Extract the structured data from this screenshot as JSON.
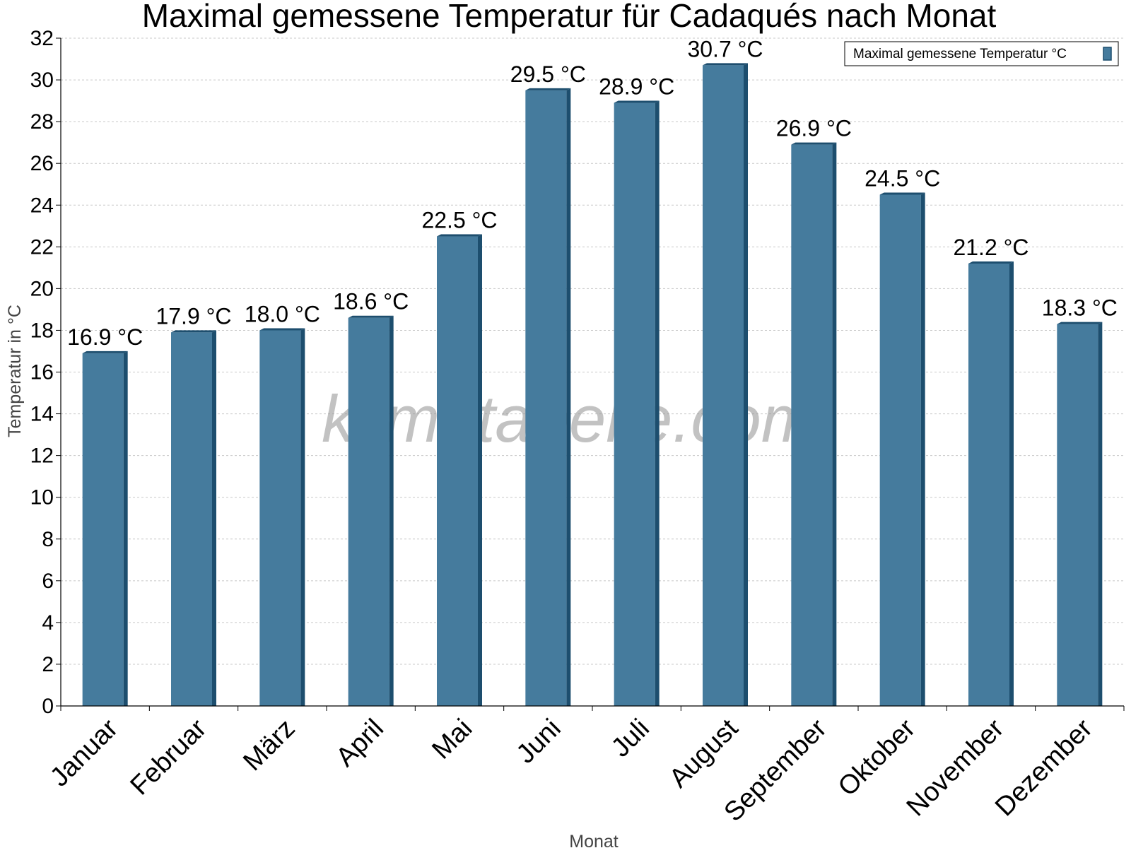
{
  "chart_data": {
    "type": "bar",
    "title": "Maximal gemessene Temperatur für Cadaqués nach Monat",
    "xlabel": "Monat",
    "ylabel": "Temperatur in °C",
    "categories": [
      "Januar",
      "Februar",
      "März",
      "April",
      "Mai",
      "Juni",
      "Juli",
      "August",
      "September",
      "Oktober",
      "November",
      "Dezember"
    ],
    "series": [
      {
        "name": "Maximal gemessene Temperatur °C",
        "values": [
          16.9,
          17.9,
          18.0,
          18.6,
          22.5,
          29.5,
          28.9,
          30.7,
          26.9,
          24.5,
          21.2,
          18.3
        ],
        "labels": [
          "16.9 °C",
          "17.9 °C",
          "18.0 °C",
          "18.6 °C",
          "22.5 °C",
          "29.5 °C",
          "28.9 °C",
          "30.7 °C",
          "26.9 °C",
          "24.5 °C",
          "21.2 °C",
          "18.3 °C"
        ],
        "color": "#457b9d",
        "shade_color": "#1d4e6e"
      }
    ],
    "ylim": [
      0,
      32
    ],
    "yticks": [
      0,
      2,
      4,
      6,
      8,
      10,
      12,
      14,
      16,
      18,
      20,
      22,
      24,
      26,
      28,
      30,
      32
    ],
    "grid": true,
    "legend_position": "top-right"
  },
  "watermark": "klimatabelle.com"
}
